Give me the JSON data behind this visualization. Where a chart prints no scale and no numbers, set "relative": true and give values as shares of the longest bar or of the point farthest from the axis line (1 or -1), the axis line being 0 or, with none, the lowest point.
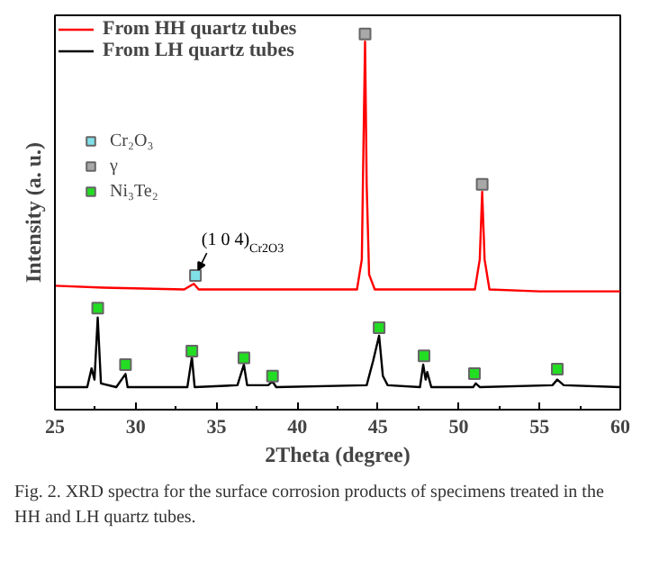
{
  "chart_data": {
    "type": "line",
    "relative": true,
    "xlabel": "2Theta (degree)",
    "ylabel": "Intensity (a. u.)",
    "xlim": [
      25,
      60
    ],
    "xticks": [
      25,
      30,
      35,
      40,
      45,
      50,
      55,
      60
    ],
    "legend": "top left",
    "grid": false,
    "series": [
      {
        "name": "From HH quartz tubes",
        "color": "#ff0000",
        "x": [
          25,
          28,
          33,
          33.6,
          33.9,
          38,
          43.7,
          44.0,
          44.1,
          44.2,
          44.3,
          44.45,
          44.8,
          48,
          51.0,
          51.3,
          51.45,
          51.6,
          51.9,
          55,
          60
        ],
        "values": [
          0.33,
          0.325,
          0.32,
          0.335,
          0.32,
          0.32,
          0.32,
          0.4,
          0.7,
          0.98,
          0.6,
          0.36,
          0.32,
          0.32,
          0.32,
          0.4,
          0.58,
          0.4,
          0.32,
          0.315,
          0.315
        ]
      },
      {
        "name": "From LH quartz tubes",
        "color": "#000000",
        "x": [
          25,
          27.0,
          27.27,
          27.45,
          27.65,
          27.85,
          28.8,
          29.37,
          29.5,
          33.2,
          33.48,
          33.65,
          36.3,
          36.7,
          36.9,
          38.2,
          38.47,
          38.7,
          44.3,
          44.7,
          45.07,
          45.3,
          45.6,
          47.6,
          47.8,
          47.95,
          48.05,
          48.3,
          50.9,
          51.05,
          51.3,
          55.8,
          56.1,
          56.5,
          60
        ],
        "values": [
          0.06,
          0.06,
          0.11,
          0.08,
          0.245,
          0.07,
          0.06,
          0.095,
          0.06,
          0.06,
          0.14,
          0.06,
          0.065,
          0.12,
          0.065,
          0.065,
          0.075,
          0.06,
          0.065,
          0.13,
          0.197,
          0.09,
          0.065,
          0.06,
          0.12,
          0.08,
          0.1,
          0.06,
          0.06,
          0.07,
          0.06,
          0.065,
          0.08,
          0.065,
          0.06
        ]
      },
      {
        "name": "Cr₂O₃",
        "type": "scatter",
        "marker": "square",
        "color": "#80e0e8",
        "x": [
          33.7
        ],
        "values": [
          0.357
        ]
      },
      {
        "name": "γ",
        "type": "scatter",
        "marker": "square",
        "color": "#a8a8a8",
        "x": [
          44.2,
          51.45
        ],
        "values": [
          1.0,
          0.6
        ]
      },
      {
        "name": "Ni₃Te₂",
        "type": "scatter",
        "marker": "square",
        "color": "#22dd22",
        "x": [
          27.65,
          29.37,
          33.48,
          36.7,
          38.47,
          45.07,
          47.85,
          50.97,
          56.1
        ],
        "values": [
          0.27,
          0.12,
          0.156,
          0.138,
          0.089,
          0.218,
          0.143,
          0.096,
          0.108
        ]
      }
    ],
    "annotations": [
      {
        "text": "(1 0 4)$_{Cr2O3}$",
        "x": 33.7,
        "y": 0.357
      },
      "Fig. 2. XRD spectra for the surface corrosion products of specimens treated in the HH and LH quartz tubes."
    ]
  }
}
